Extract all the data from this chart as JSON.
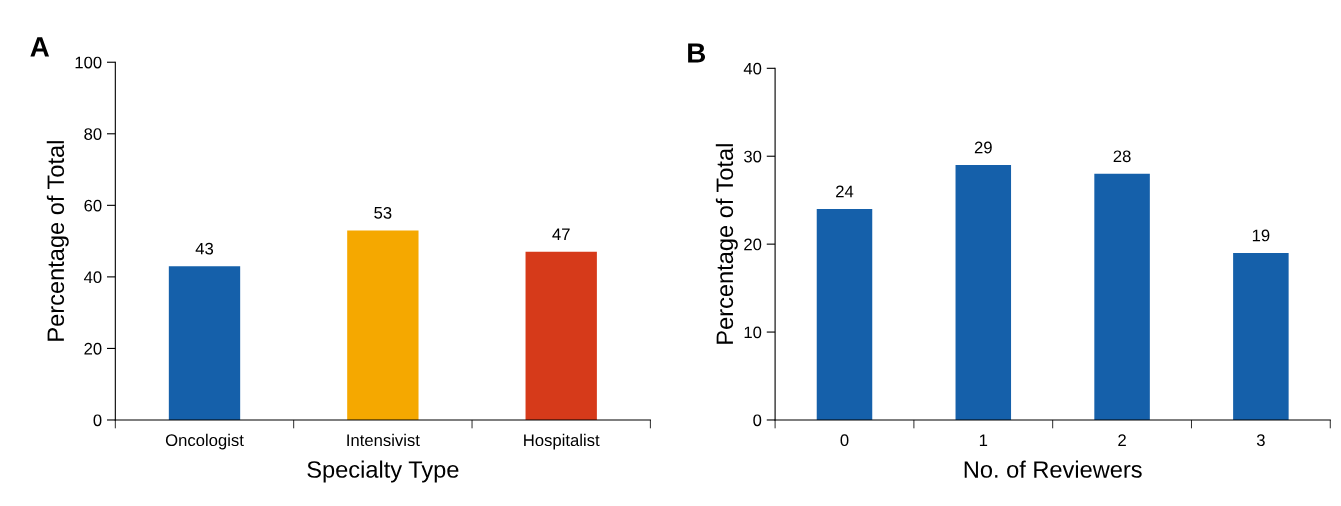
{
  "chart_data": [
    {
      "type": "bar",
      "title": "A",
      "xlabel": "Specialty Type",
      "ylabel": "Percentage of Total",
      "categories": [
        "Oncologist",
        "Intensivist",
        "Hospitalist"
      ],
      "values": [
        43,
        53,
        47
      ],
      "colors": [
        "#1560aa",
        "#f5a800",
        "#d63a1a"
      ],
      "ylim": [
        0,
        100
      ],
      "yticks": [
        0,
        20,
        40,
        60,
        80,
        100
      ],
      "data_labels": true,
      "grid": false,
      "legend": false
    },
    {
      "type": "bar",
      "title": "B",
      "xlabel": "No. of Reviewers",
      "ylabel": "Percentage of Total",
      "categories": [
        "0",
        "1",
        "2",
        "3"
      ],
      "values": [
        24,
        29,
        28,
        19
      ],
      "colors": [
        "#1560aa",
        "#1560aa",
        "#1560aa",
        "#1560aa"
      ],
      "ylim": [
        0,
        40
      ],
      "yticks": [
        0,
        10,
        20,
        30,
        40
      ],
      "data_labels": true,
      "grid": false,
      "legend": false
    }
  ]
}
